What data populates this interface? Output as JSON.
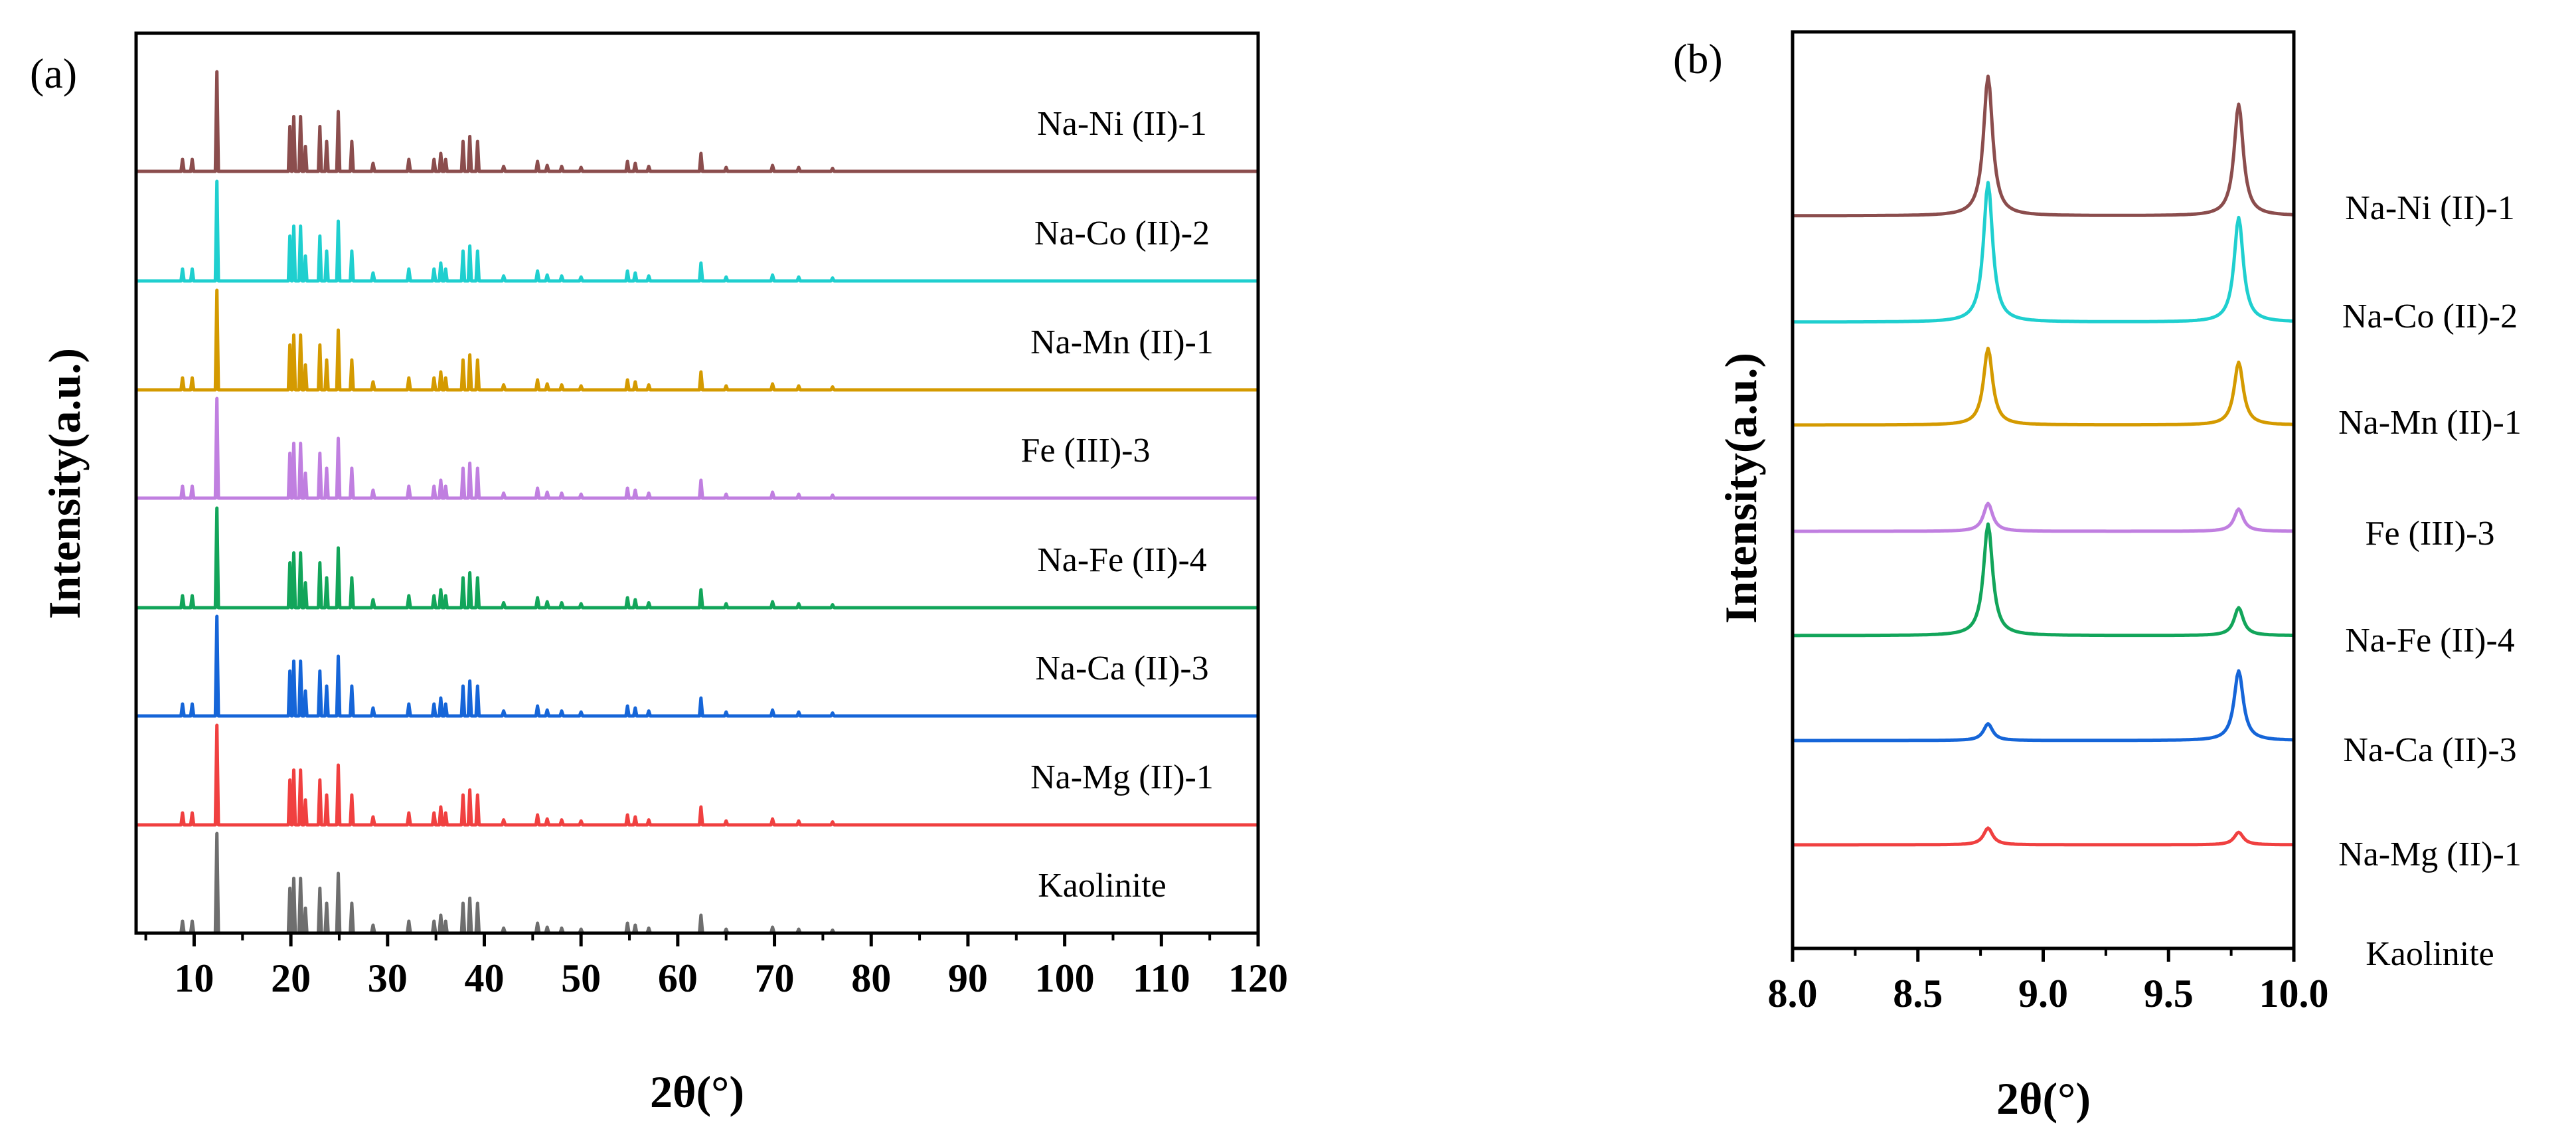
{
  "chart_data": [
    {
      "panel_label": "(a)",
      "type": "line",
      "xlabel": "2θ(°)",
      "ylabel": "Intensity(a.u.)",
      "xlim": [
        4,
        120
      ],
      "xticks": [
        10,
        20,
        30,
        40,
        50,
        60,
        70,
        80,
        90,
        100,
        110,
        120
      ],
      "yticks_shown": false,
      "grid": false,
      "legend": "none",
      "vertically_offset": true,
      "series": [
        {
          "name": "Na-Ni (II)-1",
          "color": "#8B4D4D",
          "peak_scale": 1.0
        },
        {
          "name": "Na-Co (II)-2",
          "color": "#1FCFCF",
          "peak_scale": 1.0
        },
        {
          "name": "Na-Mn (II)-1",
          "color": "#D49A00",
          "peak_scale": 1.0
        },
        {
          "name": "Fe (III)-3",
          "color": "#C07FE0",
          "peak_scale": 1.0
        },
        {
          "name": "Na-Fe (II)-4",
          "color": "#12A55A",
          "peak_scale": 1.0
        },
        {
          "name": "Na-Ca (II)-3",
          "color": "#1565D8",
          "peak_scale": 1.0
        },
        {
          "name": "Na-Mg (II)-1",
          "color": "#F04040",
          "peak_scale": 1.0
        },
        {
          "name": "Kaolinite",
          "color": "#6E6E6E",
          "peak_scale": 1.0
        }
      ],
      "peaks": [
        {
          "x": 8.8,
          "y": 0.12
        },
        {
          "x": 9.8,
          "y": 0.12
        },
        {
          "x": 12.35,
          "y": 1.0
        },
        {
          "x": 19.9,
          "y": 0.45
        },
        {
          "x": 20.3,
          "y": 0.55
        },
        {
          "x": 21.0,
          "y": 0.55
        },
        {
          "x": 21.5,
          "y": 0.25
        },
        {
          "x": 23.0,
          "y": 0.45
        },
        {
          "x": 23.7,
          "y": 0.3
        },
        {
          "x": 24.9,
          "y": 0.6
        },
        {
          "x": 26.3,
          "y": 0.3
        },
        {
          "x": 28.5,
          "y": 0.08
        },
        {
          "x": 32.2,
          "y": 0.12
        },
        {
          "x": 34.8,
          "y": 0.12
        },
        {
          "x": 35.5,
          "y": 0.18
        },
        {
          "x": 36.0,
          "y": 0.12
        },
        {
          "x": 37.8,
          "y": 0.3
        },
        {
          "x": 38.5,
          "y": 0.35
        },
        {
          "x": 39.3,
          "y": 0.3
        },
        {
          "x": 42.0,
          "y": 0.05
        },
        {
          "x": 45.5,
          "y": 0.1
        },
        {
          "x": 46.5,
          "y": 0.06
        },
        {
          "x": 48.0,
          "y": 0.05
        },
        {
          "x": 50.0,
          "y": 0.04
        },
        {
          "x": 54.8,
          "y": 0.1
        },
        {
          "x": 55.6,
          "y": 0.08
        },
        {
          "x": 57.0,
          "y": 0.05
        },
        {
          "x": 62.4,
          "y": 0.18
        },
        {
          "x": 65.0,
          "y": 0.04
        },
        {
          "x": 69.8,
          "y": 0.06
        },
        {
          "x": 72.5,
          "y": 0.04
        },
        {
          "x": 76.0,
          "y": 0.03
        }
      ]
    },
    {
      "panel_label": "(b)",
      "type": "line",
      "xlabel": "2θ(°)",
      "ylabel": "Intensity(a.u.)",
      "xlim": [
        8.0,
        10.0
      ],
      "xticks": [
        "8.0",
        "8.5",
        "9.0",
        "9.5",
        "10.0"
      ],
      "yticks_shown": false,
      "grid": false,
      "legend": "none",
      "vertically_offset": true,
      "peak_positions": [
        8.78,
        9.78
      ],
      "series": [
        {
          "name": "Na-Ni (II)-1",
          "color": "#8B4D4D",
          "peak1": 1.0,
          "peak2": 0.8
        },
        {
          "name": "Na-Co (II)-2",
          "color": "#1FCFCF",
          "peak1": 1.0,
          "peak2": 0.75
        },
        {
          "name": "Na-Mn (II)-1",
          "color": "#D49A00",
          "peak1": 0.55,
          "peak2": 0.45
        },
        {
          "name": "Fe (III)-3",
          "color": "#C07FE0",
          "peak1": 0.2,
          "peak2": 0.16
        },
        {
          "name": "Na-Fe (II)-4",
          "color": "#12A55A",
          "peak1": 0.8,
          "peak2": 0.2
        },
        {
          "name": "Na-Ca (II)-3",
          "color": "#1565D8",
          "peak1": 0.12,
          "peak2": 0.5
        },
        {
          "name": "Na-Mg (II)-1",
          "color": "#F04040",
          "peak1": 0.12,
          "peak2": 0.09
        },
        {
          "name": "Kaolinite",
          "color": "#6E6E6E",
          "peak1": 0.0,
          "peak2": 0.0
        }
      ]
    }
  ]
}
